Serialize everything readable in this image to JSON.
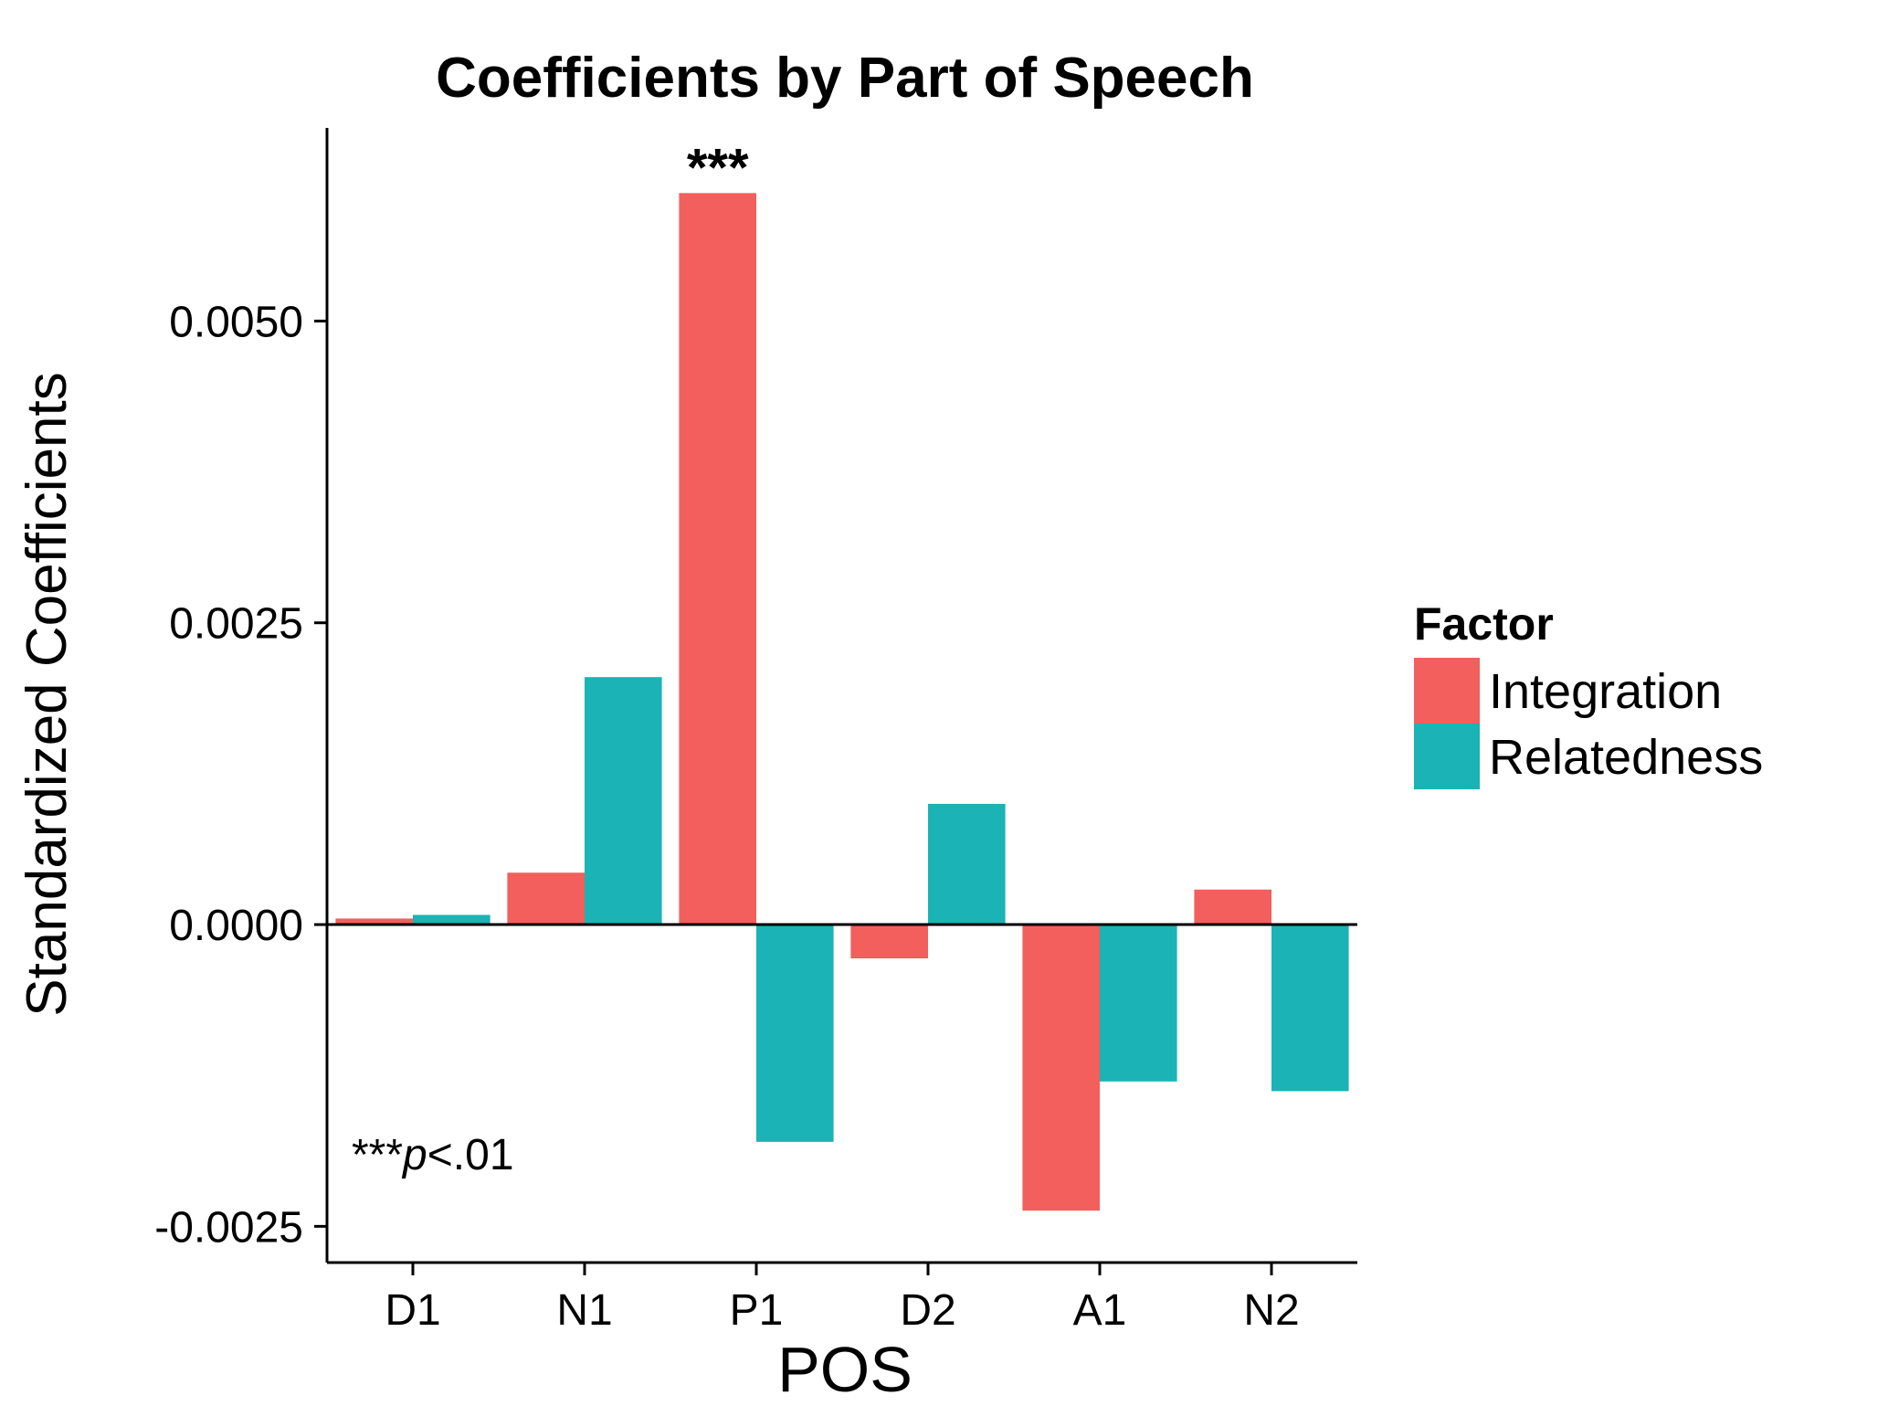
{
  "chart_data": {
    "type": "bar",
    "title": "Coefficients by Part of Speech",
    "xlabel": "POS",
    "ylabel": "Standardized Coefficients",
    "categories": [
      "D1",
      "N1",
      "P1",
      "D2",
      "A1",
      "N2"
    ],
    "series": [
      {
        "name": "Integration",
        "color": "#F25F5C",
        "values": [
          5e-05,
          0.00043,
          0.00606,
          -0.00028,
          -0.00237,
          0.00029
        ]
      },
      {
        "name": "Relatedness",
        "color": "#1BB3B5",
        "values": [
          8e-05,
          0.00205,
          -0.0018,
          0.001,
          -0.0013,
          -0.00138
        ]
      }
    ],
    "ylim": [
      -0.0028,
      0.0066
    ],
    "yticks": [
      -0.0025,
      0.0,
      0.0025,
      0.005
    ],
    "ytick_labels": [
      "-0.0025",
      "0.0000",
      "0.0025",
      "0.0050"
    ],
    "legend": {
      "title": "Factor",
      "placement": "right"
    },
    "grid": false,
    "annotations": [
      {
        "text": "***",
        "category": "P1",
        "series": "Integration"
      }
    ],
    "note": {
      "stars": "***",
      "italic": "p",
      "rest": "<.01"
    }
  }
}
